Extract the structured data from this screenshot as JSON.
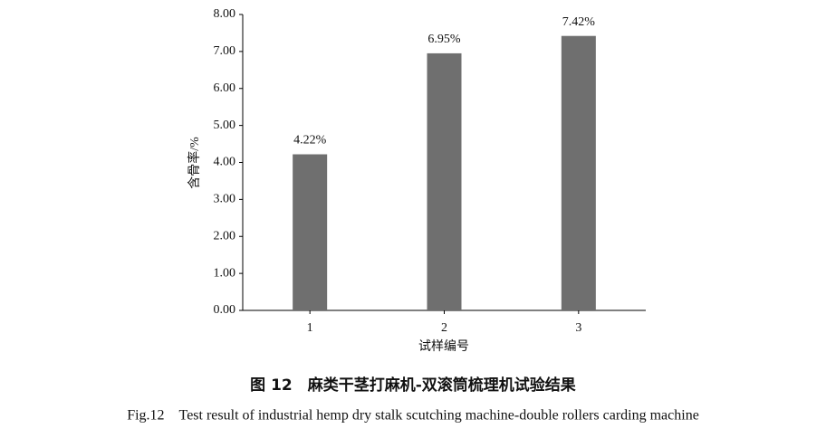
{
  "chart_data": {
    "type": "bar",
    "title": "图 12　麻类干茎打麻机-双滚筒梳理机试验结果",
    "subtitle": "Fig.12　Test result of industrial hemp dry stalk scutching machine-double rollers carding machine",
    "x_label": "试样编号",
    "y_label": "含骨率/%",
    "categories": [
      "1",
      "2",
      "3"
    ],
    "values": [
      4.22,
      6.95,
      7.42
    ],
    "value_labels": [
      "4.22%",
      "6.95%",
      "7.42%"
    ],
    "color": "#6f6f6f",
    "ylim": [
      0,
      8
    ],
    "yticks": [
      {
        "value": 0,
        "label": "0.00"
      },
      {
        "value": 1,
        "label": "1.00"
      },
      {
        "value": 2,
        "label": "2.00"
      },
      {
        "value": 3,
        "label": "3.00"
      },
      {
        "value": 4,
        "label": "4.00"
      },
      {
        "value": 5,
        "label": "5.00"
      },
      {
        "value": 6,
        "label": "6.00"
      },
      {
        "value": 7,
        "label": "7.00"
      },
      {
        "value": 8,
        "label": "8.00"
      }
    ],
    "grid": false
  }
}
